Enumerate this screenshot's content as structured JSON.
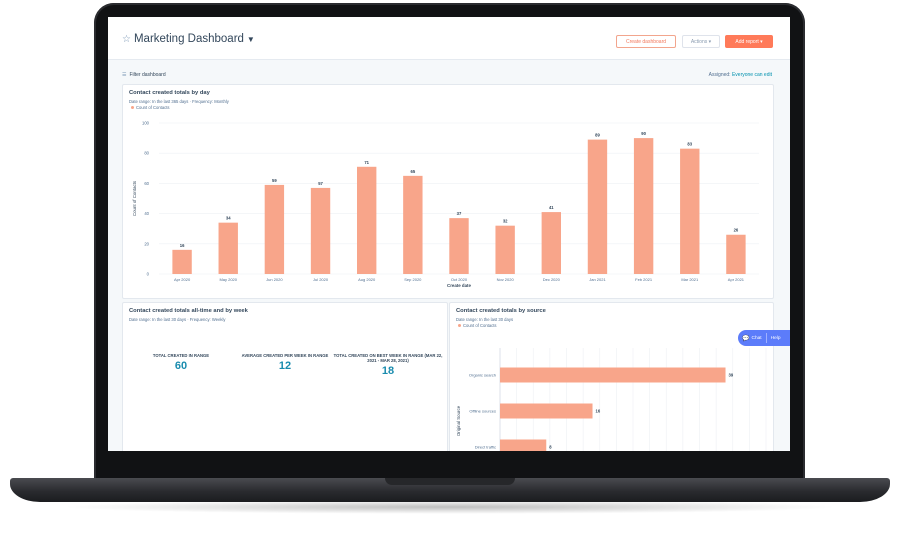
{
  "header": {
    "title": "Marketing Dashboard",
    "create_dashboard": "Create dashboard",
    "actions": "Actions ▾",
    "add_report": "Add report ▾"
  },
  "toolbar": {
    "filter": "Filter dashboard",
    "assigned_label": "Assigned:",
    "assigned_value": "Everyone can edit"
  },
  "widgets": {
    "daily": {
      "title": "Contact created totals by day",
      "subtitle": "Date range: In the last 365 days  ·  Frequency: Monthly",
      "legend": "Count of Contacts",
      "xlabel": "Create date",
      "ylabel": "Count of Contacts"
    },
    "weekly": {
      "title": "Contact created totals all-time and by week",
      "subtitle": "Date range: In the last 30 days  ·  Frequency: Weekly",
      "kpis": [
        {
          "label": "TOTAL CREATED IN RANGE",
          "value": "60"
        },
        {
          "label": "AVERAGE CREATED PER WEEK IN RANGE",
          "value": "12"
        },
        {
          "label": "TOTAL CREATED ON BEST WEEK IN RANGE (MAR 22, 2021 - MAR 28, 2021)",
          "value": "18"
        }
      ]
    },
    "source": {
      "title": "Contact created totals by source",
      "subtitle": "Date range: In the last 30 days",
      "legend": "Count of Contacts",
      "ylabel": "Original Source"
    }
  },
  "chat": {
    "chat": "Chat",
    "help": "Help"
  },
  "colors": {
    "bar": "#f8a58a",
    "accent": "#ff7a59",
    "link": "#0091ae",
    "kpi": "#1a8cae"
  },
  "chart_data": [
    {
      "type": "bar",
      "title": "Contact created totals by day",
      "categories": [
        "Apr 2020",
        "May 2020",
        "Jun 2020",
        "Jul 2020",
        "Aug 2020",
        "Sep 2020",
        "Oct 2020",
        "Nov 2020",
        "Dec 2020",
        "Jan 2021",
        "Feb 2021",
        "Mar 2021",
        "Apr 2021"
      ],
      "series": [
        {
          "name": "Count of Contacts",
          "values": [
            16,
            34,
            59,
            57,
            71,
            65,
            37,
            32,
            41,
            89,
            90,
            83,
            26
          ]
        }
      ],
      "data_labels": [
        "16",
        "34",
        "59",
        "57",
        "71",
        "65",
        "37",
        "32",
        "41",
        "89",
        "90",
        "83",
        "26"
      ],
      "xlabel": "Create date",
      "ylabel": "Count of Contacts",
      "ylim": [
        0,
        100
      ],
      "yticks": [
        0,
        20,
        40,
        60,
        80,
        100
      ],
      "grid": true,
      "legend": "top-left"
    },
    {
      "type": "bar",
      "orientation": "horizontal",
      "title": "Contact created totals by source",
      "categories": [
        "Organic search",
        "Offline sources",
        "Direct traffic"
      ],
      "series": [
        {
          "name": "Count of Contacts",
          "values": [
            39,
            16,
            8
          ]
        }
      ],
      "data_labels": [
        "39",
        "16",
        "8"
      ],
      "ylabel": "Original Source",
      "xlim": [
        0,
        46
      ],
      "grid": true,
      "legend": "top-left"
    }
  ]
}
